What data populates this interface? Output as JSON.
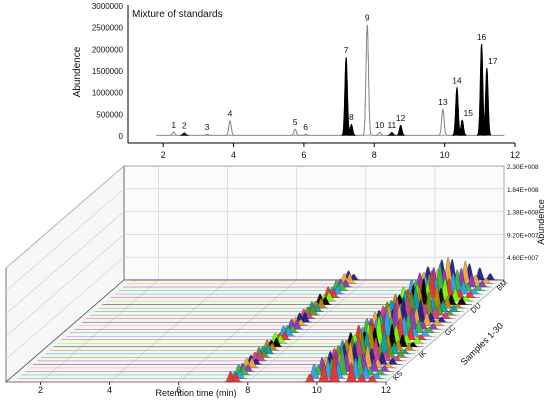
{
  "chart_data": [
    {
      "type": "line",
      "title": "Mixture of standards",
      "ylabel": "Abundence",
      "xlim": [
        1,
        12
      ],
      "ylim": [
        0,
        3000000
      ],
      "x_ticks": [
        "2",
        "4",
        "6",
        "8",
        "10",
        "12"
      ],
      "y_ticks": [
        "0",
        "500000",
        "1000000",
        "1500000",
        "2000000",
        "2500000",
        "3000000"
      ],
      "peaks": [
        {
          "label": "1",
          "x": 2.3,
          "y": 75000,
          "filled": false
        },
        {
          "label": "2",
          "x": 2.6,
          "y": 55000,
          "filled": true
        },
        {
          "label": "3",
          "x": 3.25,
          "y": 25000,
          "filled": false
        },
        {
          "label": "4",
          "x": 3.9,
          "y": 330000,
          "filled": false
        },
        {
          "label": "5",
          "x": 5.75,
          "y": 140000,
          "filled": false
        },
        {
          "label": "6",
          "x": 6.05,
          "y": 25000,
          "filled": false
        },
        {
          "label": "7",
          "x": 7.2,
          "y": 1800000,
          "filled": true
        },
        {
          "label": "8",
          "x": 7.35,
          "y": 250000,
          "filled": true
        },
        {
          "label": "9",
          "x": 7.8,
          "y": 2550000,
          "filled": false
        },
        {
          "label": "10",
          "x": 8.15,
          "y": 70000,
          "filled": false
        },
        {
          "label": "11",
          "x": 8.5,
          "y": 65000,
          "filled": true
        },
        {
          "label": "12",
          "x": 8.75,
          "y": 230000,
          "filled": true
        },
        {
          "label": "13",
          "x": 9.95,
          "y": 600000,
          "filled": false
        },
        {
          "label": "14",
          "x": 10.35,
          "y": 1100000,
          "filled": true
        },
        {
          "label": "15",
          "x": 10.5,
          "y": 350000,
          "filled": true
        },
        {
          "label": "16",
          "x": 11.05,
          "y": 2100000,
          "filled": true
        },
        {
          "label": "17",
          "x": 11.2,
          "y": 1550000,
          "filled": true
        }
      ]
    },
    {
      "type": "line",
      "title": "",
      "xlabel": "Retention time (min)",
      "zlabel": "Abundence",
      "depth_label": "Samples 1-30",
      "xlim": [
        1,
        12
      ],
      "x_ticks": [
        "2",
        "4",
        "6",
        "8",
        "10",
        "12"
      ],
      "z_ticks": [
        "4.60E+007",
        "9.20E+007",
        "1.38E+008",
        "1.84E+008",
        "2.30E+008"
      ],
      "zlim": [
        0,
        230000000
      ],
      "group_labels": [
        "KS",
        "IK",
        "GC",
        "DU",
        "BM"
      ],
      "series_colors": [
        "#e8332e",
        "#2ea1e8",
        "#38b64a",
        "#8a3ab9",
        "#f2a73b",
        "#1e1e8c",
        "#d63d8a",
        "#6b8e23",
        "#00a6a6",
        "#b8860b",
        "#000000",
        "#7cfc00"
      ],
      "peak_groups": [
        {
          "x": 7.5,
          "z": 22000000
        },
        {
          "x": 7.65,
          "z": 20000000
        },
        {
          "x": 9.8,
          "z": 30000000
        },
        {
          "x": 10.2,
          "z": 42000000
        },
        {
          "x": 10.5,
          "z": 55000000
        },
        {
          "x": 11.0,
          "z": 48000000
        },
        {
          "x": 11.3,
          "z": 26000000
        },
        {
          "x": 11.6,
          "z": 14000000
        }
      ]
    }
  ]
}
